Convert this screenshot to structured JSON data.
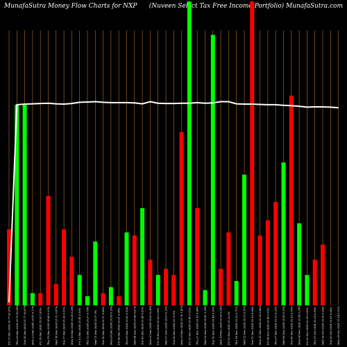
{
  "header": {
    "left": "MunafaSutra  Money Flow  Charts for NXP",
    "right": "(Nuveen  Select Tax Free    Income   Portfolio) MunafaSutra.com"
  },
  "colors": {
    "background": "#000000",
    "gridline": "#b8732a",
    "up": "#00ff00",
    "down": "#ff0000",
    "line": "#ffffff"
  },
  "chart_data": {
    "type": "bar",
    "ylim": [
      0,
      100
    ],
    "grid": "vertical",
    "categories": [
      "Fri 27 Dec 2024 25.77 63.07%",
      "Thu 26 Dec 2024 25.76 63.80%",
      "Tue 24 Dec 2024 25.77 63.87%",
      "Mon 23 Dec 2024 25.47 0.17%",
      "Fri 20 Dec 2024 25.20 1.43%",
      "Thu 19 Dec 2024 24.88 0.32%",
      "Wed 18 Dec 2024 25.12 0.87%",
      "Tue 17 Dec 2024 25.26 0.51%",
      "Mon 16 Dec 2024 25.34 0.28%",
      "Fri 13 Dec 2024 25.41 0.16%",
      "Thu 12 Dec 2024 25.37 0.79%",
      "Wed 11 Dec 2024 25.57 0%",
      "Tue 10 Dec 2024 25.57 0.04%",
      "Mon 09 Dec 2024 25.56 0.20%",
      "Fri 06 Dec 2024 25.61 0.04%",
      "Thu 05 Dec 2024 25.62 0.16%",
      "Wed 04 Dec 2024 25.66 0.67%",
      "Tue 03 Dec 2024 25.49 0.55%",
      "Mon 02 Dec 2024 25.63 0.04%",
      "Fri 29 Nov 2024 25.62 0.20%",
      "Wed 27 Nov 2024 25.67 0.35%",
      "Tue 26 Nov 2024 25.76 0%",
      "Mon 25 Nov 2024 25.76 1.41%",
      "Fri 22 Nov 2024 25.40 0.12%",
      "Thu 21 Nov 2024 25.43 0.08%",
      "Wed 20 Nov 2024 25.41 0.28%",
      "Tue 19 Nov 2024 25.48 0.35%",
      "Mon 18 Nov 2024 25.39 0.24%",
      "Fri 15 Nov 2024 25.33 0%",
      "Thu 14 Nov 2024 25.33 0.71%",
      "Wed 13 Nov 2024 25.15 0.51%",
      "Tue 12 Nov 2024 25.28 0.08%",
      "Mon 11 Nov 2024 25.30 0.40%",
      "Fri 08 Nov 2024 25.40 0.51%",
      "Thu 07 Nov 2024 25.53 0.32%",
      "Wed 06 Nov 2024 25.45 0.55%",
      "Tue 05 Nov 2024 25.59 0.55%",
      "Mon 04 Nov 2024 25.45 0.24%",
      "Fri 01 Nov 2024 25.39 0.16%",
      "Thu 31 Oct 2024 25.35 0.59%",
      "Wed 30 Oct 2024 25.50 0.20%",
      "Tue 29 Oct 2024 25.55 0.04%",
      "Mon 28 Oct 2024 25.54 0.12%"
    ],
    "directions": [
      "down",
      "up",
      "up",
      "up",
      "down",
      "down",
      "down",
      "down",
      "down",
      "up",
      "up",
      "up",
      "down",
      "up",
      "down",
      "up",
      "down",
      "up",
      "down",
      "up",
      "down",
      "down",
      "down",
      "up",
      "down",
      "up",
      "up",
      "down",
      "down",
      "up",
      "up",
      "down",
      "down",
      "down",
      "down",
      "up",
      "down",
      "up",
      "up",
      "down",
      "down",
      "down",
      "down"
    ],
    "values": [
      25,
      66,
      66,
      4,
      4,
      36,
      7,
      25,
      16,
      10,
      3,
      21,
      4,
      6,
      3,
      24,
      23,
      32,
      15,
      10,
      12,
      10,
      57,
      100,
      32,
      5,
      89,
      12,
      24,
      8,
      43,
      100,
      23,
      28,
      34,
      47,
      69,
      27,
      10,
      15,
      20,
      0,
      0
    ],
    "line": [
      1,
      66,
      66.2,
      66.3,
      66.4,
      66.5,
      66.3,
      66.2,
      66.4,
      66.8,
      66.9,
      67,
      66.8,
      66.7,
      66.7,
      66.7,
      66.6,
      66.3,
      67,
      66.5,
      66.4,
      66.4,
      66.5,
      66.5,
      66.7,
      66.5,
      66.6,
      67,
      67,
      66.3,
      66.2,
      66.2,
      66.1,
      66,
      66,
      65.8,
      65.7,
      65.5,
      65.2,
      65.3,
      65.3,
      65.2,
      65
    ]
  }
}
